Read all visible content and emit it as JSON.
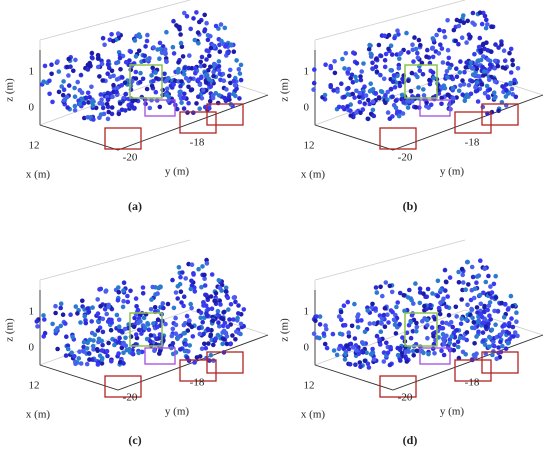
{
  "panels": [
    {
      "label": "(a)",
      "z_label": "z (m)",
      "x_label": "x (m)",
      "y_label": "y (m)",
      "z_ticks": [
        "1",
        "0"
      ],
      "x_ticks": [
        "12"
      ],
      "y_ticks": [
        "-20",
        "-18"
      ]
    },
    {
      "label": "(b)",
      "z_label": "z (m)",
      "x_label": "x (m)",
      "y_label": "y (m)",
      "z_ticks": [
        "1",
        "0"
      ],
      "x_ticks": [
        "12"
      ],
      "y_ticks": [
        "-20",
        "-18"
      ]
    },
    {
      "label": "(c)",
      "z_label": "z (m)",
      "x_label": "x (m)",
      "y_label": "y (m)",
      "z_ticks": [
        "1",
        "0"
      ],
      "x_ticks": [
        "12"
      ],
      "y_ticks": [
        "-20",
        "-18"
      ]
    },
    {
      "label": "(d)",
      "z_label": "z (m)",
      "x_label": "x (m)",
      "y_label": "y (m)",
      "z_ticks": [
        "1",
        "0"
      ],
      "x_ticks": [
        "12"
      ],
      "y_ticks": [
        "-20",
        "-18"
      ]
    }
  ]
}
